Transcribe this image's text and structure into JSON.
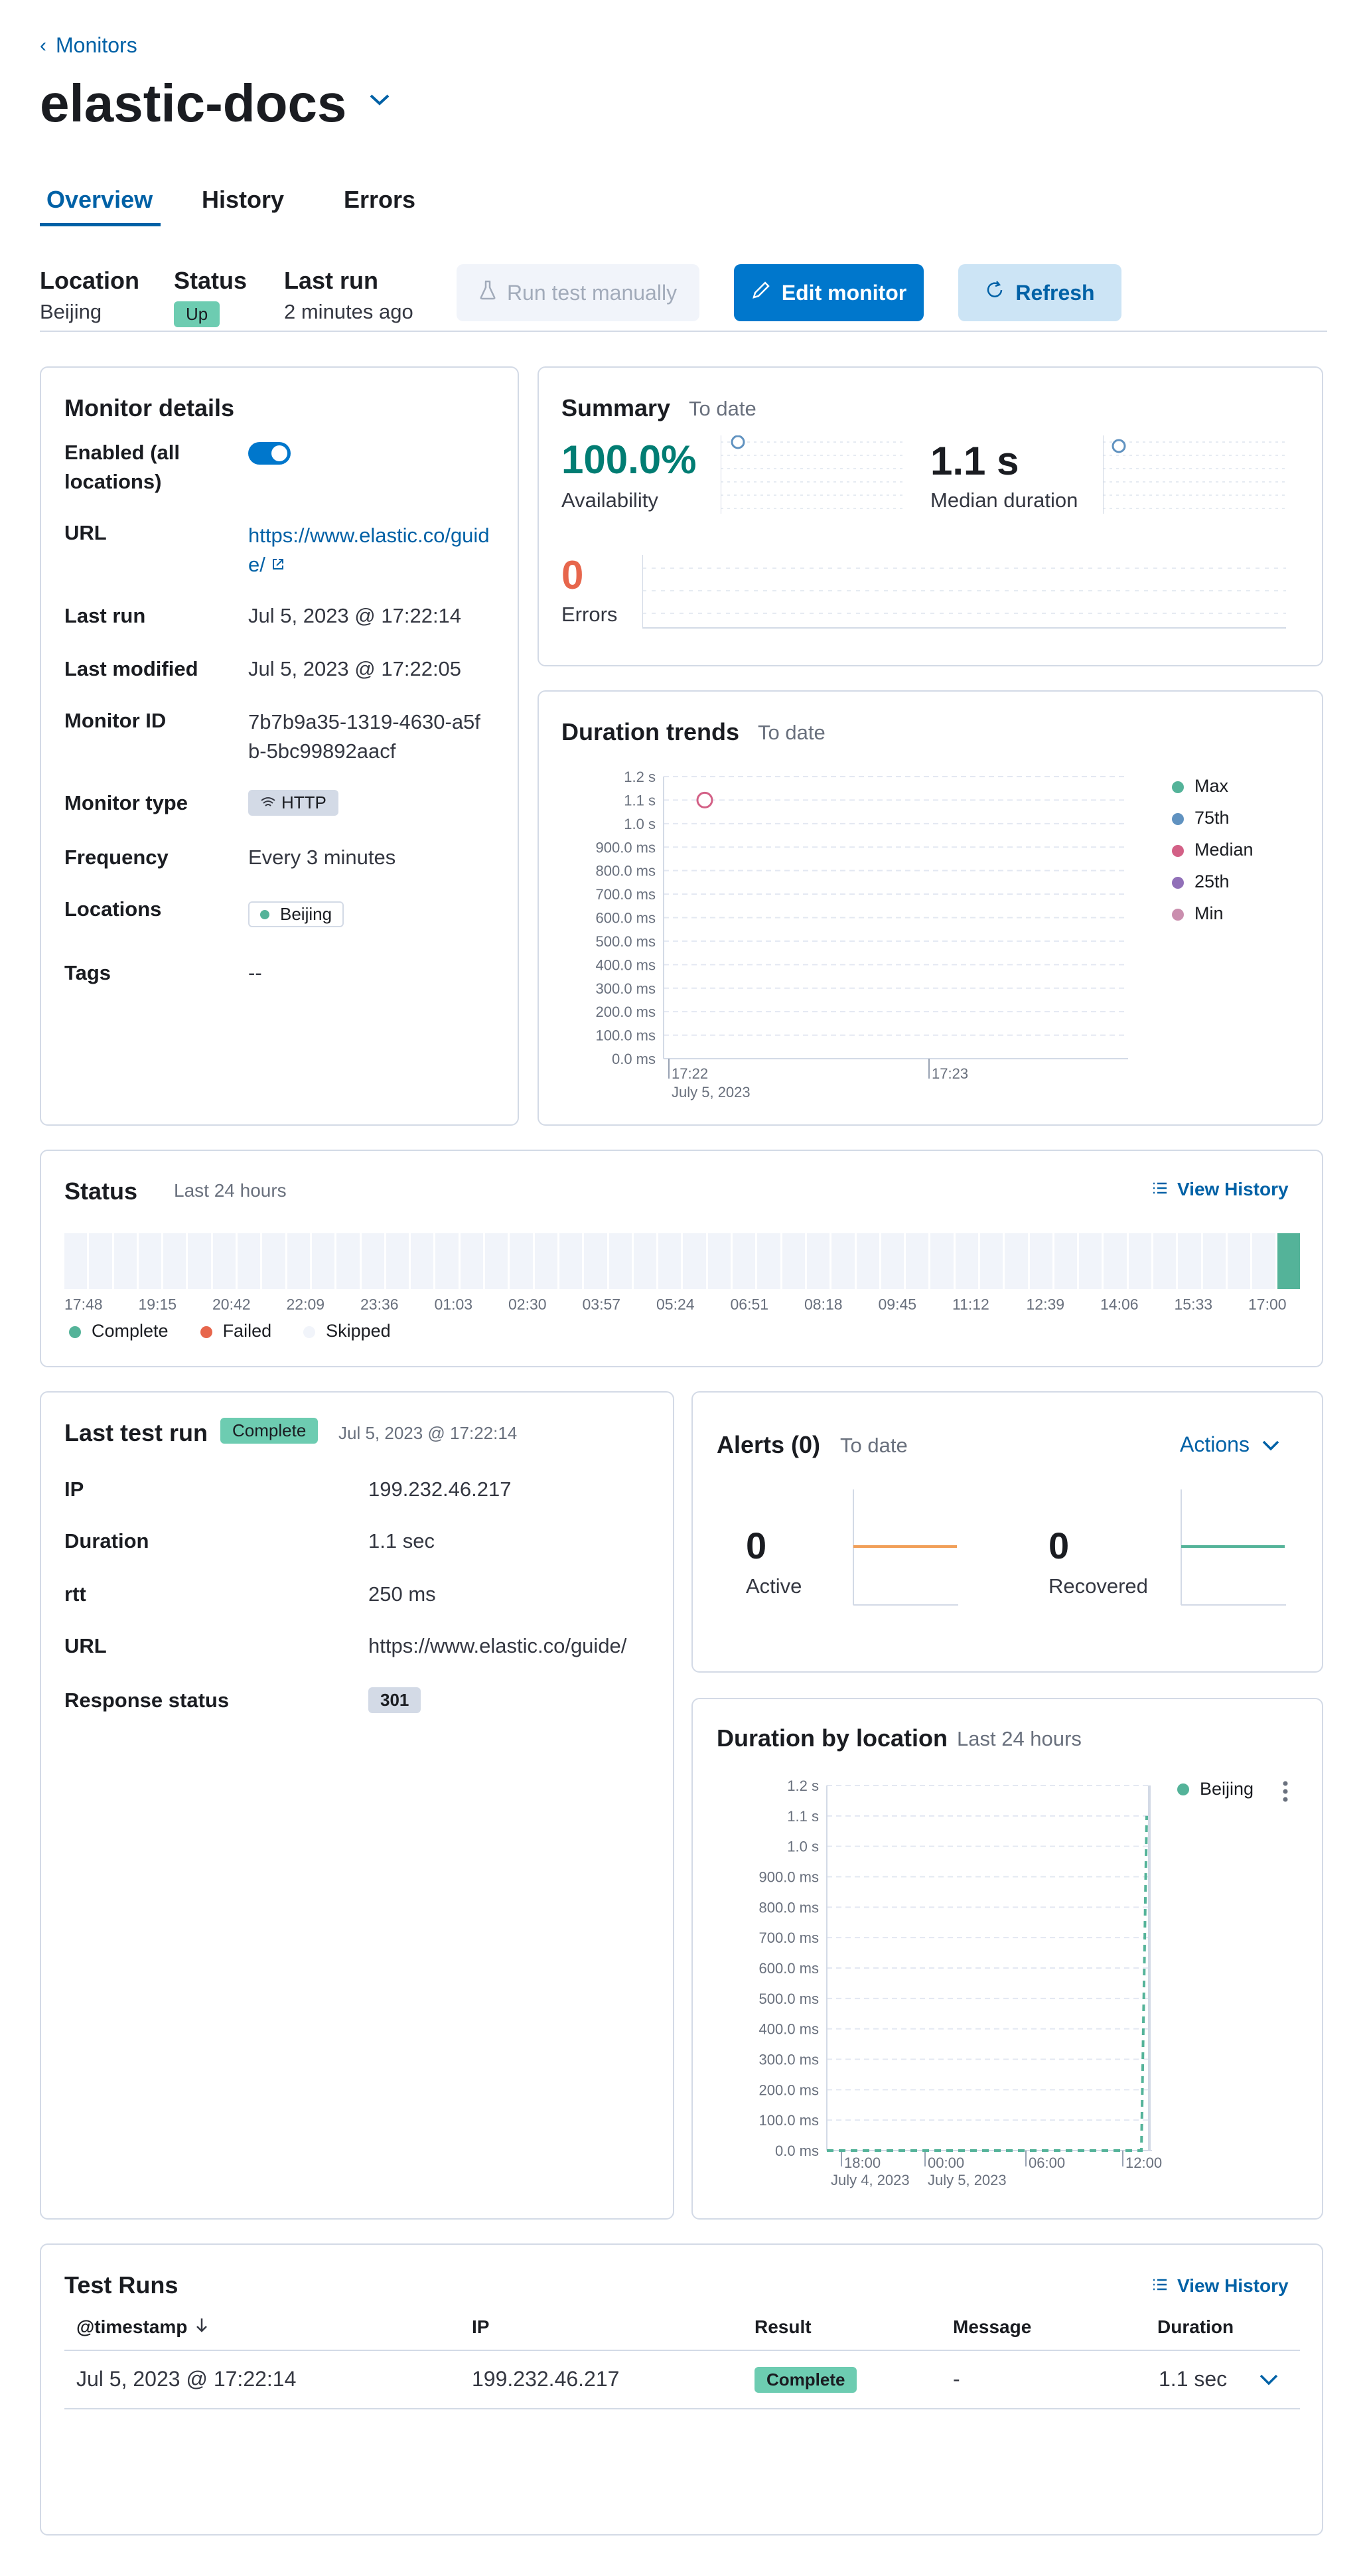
{
  "breadcrumb": {
    "back_label": "Monitors"
  },
  "header": {
    "title": "elastic-docs"
  },
  "tabs": [
    {
      "label": "Overview"
    },
    {
      "label": "History"
    },
    {
      "label": "Errors"
    }
  ],
  "meta": {
    "location_label": "Location",
    "location_value": "Beijing",
    "status_label": "Status",
    "status_value": "Up",
    "lastrun_label": "Last run",
    "lastrun_value": "2 minutes ago"
  },
  "actions": {
    "run_test": "Run test manually",
    "edit": "Edit monitor",
    "refresh": "Refresh"
  },
  "monitor_details": {
    "title": "Monitor details",
    "enabled_label": "Enabled (all locations)",
    "enabled": true,
    "url_label": "URL",
    "url_value": "https://www.elastic.co/guide/",
    "last_run_label": "Last run",
    "last_run_value": "Jul 5, 2023 @ 17:22:14",
    "last_modified_label": "Last modified",
    "last_modified_value": "Jul 5, 2023 @ 17:22:05",
    "monitor_id_label": "Monitor ID",
    "monitor_id_value": "7b7b9a35-1319-4630-a5fb-5bc99892aacf",
    "type_label": "Monitor type",
    "type_value": "HTTP",
    "frequency_label": "Frequency",
    "frequency_value": "Every 3 minutes",
    "locations_label": "Locations",
    "locations_value": "Beijing",
    "tags_label": "Tags",
    "tags_value": "--"
  },
  "summary": {
    "title": "Summary",
    "subtitle": "To date",
    "availability_value": "100.0%",
    "availability_label": "Availability",
    "median_value": "1.1 s",
    "median_label": "Median duration",
    "errors_value": "0",
    "errors_label": "Errors"
  },
  "duration_trends": {
    "title": "Duration trends",
    "subtitle": "To date",
    "legend": [
      "Max",
      "75th",
      "Median",
      "25th",
      "Min"
    ],
    "legend_colors": [
      "#54b399",
      "#6092c0",
      "#d36086",
      "#9170b8",
      "#ca8eae"
    ]
  },
  "status_panel": {
    "title": "Status",
    "subtitle": "Last 24 hours",
    "view_history": "View History",
    "ticks": [
      "17:48",
      "19:15",
      "20:42",
      "22:09",
      "23:36",
      "01:03",
      "02:30",
      "03:57",
      "05:24",
      "06:51",
      "08:18",
      "09:45",
      "11:12",
      "12:39",
      "14:06",
      "15:33",
      "17:00"
    ],
    "legend": [
      "Complete",
      "Failed",
      "Skipped"
    ],
    "legend_colors": [
      "#54b399",
      "#e7664c",
      "#f1f4fa"
    ]
  },
  "last_test_run": {
    "title": "Last test run",
    "badge": "Complete",
    "timestamp": "Jul 5, 2023 @ 17:22:14",
    "rows": [
      {
        "label": "IP",
        "value": "199.232.46.217"
      },
      {
        "label": "Duration",
        "value": "1.1 sec"
      },
      {
        "label": "rtt",
        "value": "250 ms"
      },
      {
        "label": "URL",
        "value": "https://www.elastic.co/guide/"
      },
      {
        "label": "Response status",
        "value": "301"
      }
    ]
  },
  "alerts": {
    "title": "Alerts (0)",
    "subtitle": "To date",
    "actions": "Actions",
    "active_value": "0",
    "active_label": "Active",
    "recovered_value": "0",
    "recovered_label": "Recovered"
  },
  "duration_by_location": {
    "title": "Duration by location",
    "subtitle": "Last 24 hours",
    "legend": "Beijing"
  },
  "test_runs": {
    "title": "Test Runs",
    "view_history": "View History",
    "columns": [
      "@timestamp",
      "IP",
      "Result",
      "Message",
      "Duration"
    ],
    "rows": [
      {
        "timestamp": "Jul 5, 2023 @ 17:22:14",
        "ip": "199.232.46.217",
        "result": "Complete",
        "message": "-",
        "duration": "1.1 sec"
      }
    ]
  },
  "chart_data": [
    {
      "type": "line",
      "title": "Duration trends",
      "ytick_labels": [
        "0.0 ms",
        "100.0 ms",
        "200.0 ms",
        "300.0 ms",
        "400.0 ms",
        "500.0 ms",
        "600.0 ms",
        "700.0 ms",
        "800.0 ms",
        "900.0 ms",
        "1.0 s",
        "1.1 s",
        "1.2 s"
      ],
      "ylim": [
        0,
        1.2
      ],
      "x_ticks": [
        "17:22",
        "17:23"
      ],
      "x_date_label": "July 5, 2023",
      "series": [
        {
          "name": "Median",
          "x": [
            "17:22"
          ],
          "values": [
            1.1
          ]
        }
      ]
    },
    {
      "type": "line",
      "title": "Duration by location",
      "ytick_labels": [
        "0.0 ms",
        "100.0 ms",
        "200.0 ms",
        "300.0 ms",
        "400.0 ms",
        "500.0 ms",
        "600.0 ms",
        "700.0 ms",
        "800.0 ms",
        "900.0 ms",
        "1.0 s",
        "1.1 s",
        "1.2 s"
      ],
      "ylim": [
        0,
        1.2
      ],
      "x_ticks": [
        "18:00",
        "00:00",
        "06:00",
        "12:00"
      ],
      "x_date_labels": [
        "July 4, 2023",
        "July 5, 2023"
      ],
      "series": [
        {
          "name": "Beijing",
          "values": [
            0,
            0,
            0,
            0,
            0,
            0,
            1.1
          ]
        }
      ]
    }
  ]
}
